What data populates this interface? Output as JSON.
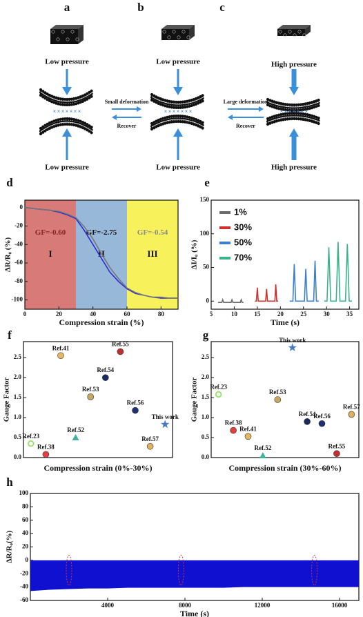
{
  "diagram": {
    "panels": [
      {
        "label": "a",
        "top": "Low pressure",
        "bottom": "Low pressure"
      },
      {
        "label": "b",
        "top": "Low pressure",
        "bottom": "Low pressure"
      },
      {
        "label": "c",
        "top": "High pressure",
        "bottom": "High pressure"
      }
    ],
    "arrows": [
      {
        "forward": "Small deformation",
        "back": "Recover"
      },
      {
        "forward": "Large deformation",
        "back": "Recover"
      }
    ]
  },
  "chart_data": [
    {
      "type": "line",
      "label": "d",
      "x_label": "Compression strain (%)",
      "y_label": "ΔR/R₀ (%)",
      "xlim": [
        0,
        90
      ],
      "xticks": [
        0,
        20,
        40,
        60,
        80
      ],
      "ylim": [
        -110,
        8
      ],
      "yticks": [
        0,
        -20,
        -40,
        -60,
        -80,
        -100
      ],
      "regions": [
        {
          "xrange": [
            0,
            30
          ],
          "color": "#d77a78",
          "gf": "GF=-0.60",
          "gf_color": "#8b1f1f",
          "name": "I"
        },
        {
          "xrange": [
            30,
            60
          ],
          "color": "#98b8da",
          "gf": "GF=-2.75",
          "gf_color": "#111111",
          "name": "II"
        },
        {
          "xrange": [
            60,
            90
          ],
          "color": "#f7f25c",
          "gf": "GF=-0.54",
          "gf_color": "#888888",
          "name": "III"
        }
      ],
      "x": [
        0,
        5,
        10,
        15,
        20,
        25,
        30,
        35,
        40,
        45,
        50,
        55,
        60,
        65,
        70,
        75,
        80,
        85,
        90
      ],
      "series": [
        {
          "color": "#2b2bd6",
          "values": [
            0,
            -1,
            -2,
            -3,
            -5,
            -8,
            -12,
            -25,
            -40,
            -55,
            -70,
            -80,
            -88,
            -93,
            -95,
            -97,
            -98,
            -98,
            -98
          ]
        },
        {
          "color": "#777777",
          "values": [
            0,
            -1,
            -2,
            -3,
            -4,
            -7,
            -11,
            -21,
            -34,
            -50,
            -65,
            -77,
            -87,
            -92,
            -95,
            -97,
            -97,
            -98,
            -98
          ]
        }
      ]
    },
    {
      "type": "line",
      "label": "e",
      "x_label": "Time (s)",
      "y_label": "ΔI/I₀ (%)",
      "xlim": [
        5,
        37
      ],
      "xticks": [
        5,
        10,
        15,
        20,
        25,
        30,
        35
      ],
      "ylim": [
        -12,
        150
      ],
      "yticks": [
        0,
        50,
        100,
        150
      ],
      "series": [
        {
          "name": "1%",
          "color": "#6b6b6b",
          "x": [
            6.5,
            7.3,
            7.5,
            7.7,
            9.3,
            9.5,
            9.7,
            11.3,
            11.5,
            11.7,
            12
          ],
          "values": [
            -2,
            -2,
            2,
            -2,
            -2,
            2,
            -2,
            -2,
            2,
            -2,
            -2
          ]
        },
        {
          "name": "30%",
          "color": "#d0302c",
          "x": [
            14.5,
            14.8,
            15,
            15.2,
            16.8,
            17,
            17.2,
            18.8,
            19,
            19.2,
            19.5
          ],
          "values": [
            0,
            0,
            20,
            0,
            0,
            18,
            0,
            0,
            25,
            0,
            0
          ]
        },
        {
          "name": "50%",
          "color": "#3b7fd0",
          "x": [
            22,
            22.7,
            23,
            23.3,
            25.2,
            25.5,
            25.8,
            27.2,
            27.5,
            27.8,
            28.3
          ],
          "values": [
            0,
            0,
            55,
            0,
            0,
            48,
            0,
            0,
            60,
            0,
            0
          ]
        },
        {
          "name": "70%",
          "color": "#3bb389",
          "x": [
            29.5,
            30.1,
            30.5,
            30.9,
            32.1,
            32.5,
            32.9,
            34.1,
            34.5,
            34.9,
            35.5
          ],
          "values": [
            0,
            0,
            80,
            0,
            0,
            88,
            0,
            0,
            85,
            0,
            0
          ]
        }
      ]
    },
    {
      "type": "scatter",
      "label": "f",
      "x_label": "Compression strain (0%-30%)",
      "y_label": "Gauge Factor",
      "ylim": [
        0,
        2.9
      ],
      "yticks": [
        {
          "value": 0,
          "label": "0.0"
        },
        {
          "value": 0.5,
          "label": "0.5"
        },
        {
          "value": 1,
          "label": "1.0"
        },
        {
          "value": 1.5,
          "label": "1.5"
        },
        {
          "value": 2,
          "label": "2.0"
        },
        {
          "value": 2.5,
          "label": "2.5"
        }
      ],
      "categories": [
        "Ref.23",
        "Ref.38",
        "Ref.41",
        "Ref.52",
        "Ref.53",
        "Ref.54",
        "Ref.55",
        "Ref.56",
        "Ref.57",
        "This work"
      ],
      "values": [
        0.35,
        0.08,
        2.55,
        0.5,
        1.52,
        2.0,
        2.65,
        1.18,
        0.28,
        0.83
      ],
      "colors": [
        "#9be36b",
        "#e04040",
        "#e5b860",
        "#40b0a0",
        "#c8a860",
        "#1a2a60",
        "#c03030",
        "#203070",
        "#e0b060",
        "#4a7ac0"
      ],
      "markers": [
        "ring",
        "circle",
        "circle",
        "triangle",
        "circle",
        "circle",
        "circle",
        "circle",
        "circle",
        "star"
      ]
    },
    {
      "type": "scatter",
      "label": "g",
      "x_label": "Compression strain (30%-60%)",
      "y_label": "Gauge Factor",
      "ylim": [
        0,
        2.9
      ],
      "yticks": [
        {
          "value": 0,
          "label": "0.0"
        },
        {
          "value": 0.5,
          "label": "0.5"
        },
        {
          "value": 1,
          "label": "1.0"
        },
        {
          "value": 1.5,
          "label": "1.5"
        },
        {
          "value": 2,
          "label": "2.0"
        },
        {
          "value": 2.5,
          "label": "2.5"
        }
      ],
      "categories": [
        "Ref.23",
        "Ref.38",
        "Ref.41",
        "Ref.52",
        "Ref.53",
        "This work",
        "Ref.54",
        "Ref.56",
        "Ref.55",
        "Ref.57"
      ],
      "values": [
        1.58,
        0.68,
        0.53,
        0.05,
        1.45,
        2.75,
        0.9,
        0.85,
        0.1,
        1.08
      ],
      "colors": [
        "#9be36b",
        "#e04040",
        "#e5b860",
        "#40b0a0",
        "#c8a860",
        "#4a7ac0",
        "#1a2a60",
        "#203070",
        "#c03030",
        "#e0b060"
      ],
      "markers": [
        "ring",
        "circle",
        "circle",
        "triangle",
        "circle",
        "star",
        "circle",
        "circle",
        "circle",
        "circle"
      ]
    },
    {
      "type": "band",
      "label": "h",
      "x_label": "Time (s)",
      "y_label": "ΔR/R₀(%)",
      "xlim": [
        0,
        17000
      ],
      "xticks": [
        4000,
        8000,
        12000,
        16000
      ],
      "ylim": [
        -60,
        100
      ],
      "yticks": [
        -60,
        -40,
        -20,
        0,
        20,
        40,
        60,
        80,
        100
      ],
      "x": [
        0,
        1000,
        2000,
        3000,
        4000,
        5000,
        6000,
        7000,
        8000,
        9000,
        10000,
        11000,
        12000,
        13000,
        14000,
        15000,
        16000,
        17000
      ],
      "series": [
        {
          "color": "#1010d0",
          "upper": [
            0,
            0,
            0,
            0,
            0,
            0,
            0,
            0,
            0,
            0,
            0,
            0,
            0,
            0,
            0,
            0,
            0,
            0
          ],
          "lower": [
            -46,
            -44,
            -43,
            -42,
            -42,
            -41,
            -41,
            -41,
            -41,
            -41,
            -41,
            -40,
            -40,
            -40,
            -40,
            -40,
            -40,
            -40
          ]
        }
      ]
    }
  ]
}
